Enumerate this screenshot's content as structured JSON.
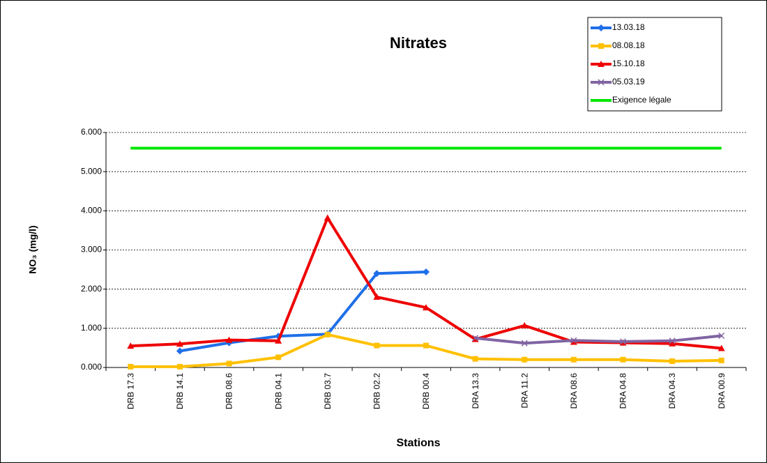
{
  "chart_data": {
    "type": "line",
    "title": "Nitrates",
    "x_label": "Stations",
    "y_label": "NO₃ (mg/l)",
    "categories": [
      "DRB 17.3",
      "DRB 14.1",
      "DRB 08.6",
      "DRB 04.1",
      "DRB 03.7",
      "DRB 02.2",
      "DRB 00.4",
      "DRA 13.3",
      "DRA 11.2",
      "DRA 08.6",
      "DRA 04.8",
      "DRA 04.3",
      "DRA 00.9"
    ],
    "series": [
      {
        "name": "13.03.18",
        "color": "#1f6fe8",
        "marker": "diamond",
        "values": [
          null,
          0.42,
          0.63,
          0.8,
          0.85,
          2.4,
          2.44,
          null,
          null,
          null,
          null,
          null,
          null
        ]
      },
      {
        "name": "08.08.18",
        "color": "#ffc000",
        "marker": "square",
        "values": [
          0.02,
          0.02,
          0.1,
          0.26,
          0.84,
          0.56,
          0.56,
          0.22,
          0.2,
          0.2,
          0.2,
          0.16,
          0.18
        ]
      },
      {
        "name": "15.10.18",
        "color": "#ee0000",
        "marker": "triangle",
        "values": [
          0.55,
          0.6,
          0.7,
          0.68,
          3.82,
          1.8,
          1.53,
          0.72,
          1.07,
          0.65,
          0.63,
          0.61,
          0.49
        ]
      },
      {
        "name": "05.03.19",
        "color": "#8064a2",
        "marker": "x",
        "values": [
          null,
          null,
          null,
          null,
          null,
          null,
          null,
          0.75,
          0.62,
          0.69,
          0.66,
          0.68,
          0.81
        ]
      },
      {
        "name": "Exigence légale",
        "color": "#00e600",
        "marker": "none",
        "values": [
          5.6,
          5.6,
          5.6,
          5.6,
          5.6,
          5.6,
          5.6,
          5.6,
          5.6,
          5.6,
          5.6,
          5.6,
          5.6
        ]
      }
    ],
    "ylim": [
      0,
      6
    ],
    "yticks": [
      {
        "value": 0,
        "label": "0.000"
      },
      {
        "value": 1,
        "label": "1.000"
      },
      {
        "value": 2,
        "label": "2.000"
      },
      {
        "value": 3,
        "label": "3.000"
      },
      {
        "value": 4,
        "label": "4.000"
      },
      {
        "value": 5,
        "label": "5.000"
      },
      {
        "value": 6,
        "label": "6.000"
      }
    ],
    "grid": true,
    "legend": "top-right"
  }
}
